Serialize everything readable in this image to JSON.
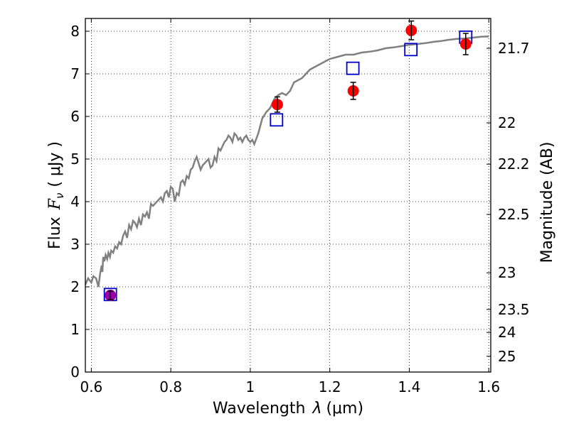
{
  "chart_data": {
    "type": "scatter",
    "xlabel": "Wavelength",
    "xlabel_symbol": "λ",
    "xlabel_unit": "(μm)",
    "ylabel": "Flux",
    "ylabel_symbol": "F",
    "ylabel_subscript": "ν",
    "ylabel_unit": "( μJy )",
    "y2label": "Magnitude (AB)",
    "xlim": [
      0.585,
      1.605
    ],
    "ylim": [
      0,
      8.3
    ],
    "grid": true,
    "grid_style": "dotted",
    "x_ticks": [
      0.6,
      0.8,
      1.0,
      1.2,
      1.4,
      1.6
    ],
    "x_tick_labels": [
      "0.6",
      "0.8",
      "1",
      "1.2",
      "1.4",
      "1.6"
    ],
    "y_ticks": [
      0,
      1,
      2,
      3,
      4,
      5,
      6,
      7,
      8
    ],
    "y_tick_labels": [
      "0",
      "1",
      "2",
      "3",
      "4",
      "5",
      "6",
      "7",
      "8"
    ],
    "y2_ticks": [
      {
        "label": "21.7",
        "flux": 7.6
      },
      {
        "label": "22",
        "flux": 5.85
      },
      {
        "label": "22.2",
        "flux": 4.88
      },
      {
        "label": "22.5",
        "flux": 3.7
      },
      {
        "label": "23",
        "flux": 2.33
      },
      {
        "label": "23.5",
        "flux": 1.47
      },
      {
        "label": "24",
        "flux": 0.93
      },
      {
        "label": "25",
        "flux": 0.37
      }
    ],
    "series": [
      {
        "name": "model-spectrum",
        "kind": "line",
        "color": "#808080",
        "x": [
          0.585,
          0.592,
          0.6,
          0.605,
          0.612,
          0.618,
          0.622,
          0.626,
          0.628,
          0.63,
          0.633,
          0.636,
          0.64,
          0.643,
          0.647,
          0.65,
          0.655,
          0.66,
          0.665,
          0.67,
          0.675,
          0.68,
          0.685,
          0.69,
          0.695,
          0.7,
          0.705,
          0.71,
          0.715,
          0.72,
          0.725,
          0.73,
          0.735,
          0.74,
          0.745,
          0.75,
          0.755,
          0.76,
          0.765,
          0.77,
          0.775,
          0.78,
          0.785,
          0.79,
          0.795,
          0.8,
          0.805,
          0.81,
          0.815,
          0.82,
          0.825,
          0.83,
          0.835,
          0.84,
          0.845,
          0.85,
          0.855,
          0.86,
          0.865,
          0.87,
          0.875,
          0.88,
          0.885,
          0.89,
          0.895,
          0.9,
          0.905,
          0.91,
          0.915,
          0.92,
          0.925,
          0.93,
          0.935,
          0.94,
          0.945,
          0.95,
          0.955,
          0.96,
          0.965,
          0.97,
          0.975,
          0.98,
          0.985,
          0.99,
          0.995,
          1.0,
          1.005,
          1.01,
          1.02,
          1.03,
          1.04,
          1.05,
          1.06,
          1.07,
          1.08,
          1.09,
          1.1,
          1.11,
          1.12,
          1.13,
          1.14,
          1.15,
          1.16,
          1.17,
          1.18,
          1.19,
          1.2,
          1.22,
          1.24,
          1.26,
          1.28,
          1.3,
          1.32,
          1.34,
          1.36,
          1.38,
          1.4,
          1.42,
          1.44,
          1.46,
          1.48,
          1.5,
          1.52,
          1.54,
          1.56,
          1.58,
          1.6
        ],
        "y": [
          2.05,
          2.2,
          2.1,
          2.25,
          2.2,
          2.0,
          2.3,
          2.5,
          2.35,
          2.7,
          2.6,
          2.75,
          2.65,
          2.8,
          2.7,
          2.85,
          2.8,
          2.95,
          2.9,
          3.05,
          3.0,
          3.2,
          3.3,
          3.15,
          3.45,
          3.35,
          3.55,
          3.5,
          3.4,
          3.6,
          3.45,
          3.7,
          3.65,
          3.75,
          3.6,
          3.95,
          3.9,
          3.95,
          4.0,
          4.05,
          4.1,
          4.0,
          4.2,
          4.25,
          4.1,
          4.35,
          4.3,
          4.0,
          4.2,
          4.15,
          4.45,
          4.5,
          4.4,
          4.6,
          4.55,
          4.75,
          4.8,
          4.95,
          5.05,
          4.9,
          4.75,
          4.85,
          4.9,
          4.95,
          5.0,
          4.8,
          4.85,
          5.05,
          4.95,
          5.25,
          5.2,
          5.3,
          5.4,
          5.45,
          5.55,
          5.5,
          5.4,
          5.6,
          5.55,
          5.45,
          5.5,
          5.4,
          5.5,
          5.55,
          5.45,
          5.4,
          5.45,
          5.35,
          5.6,
          5.95,
          6.1,
          6.2,
          6.4,
          6.5,
          6.55,
          6.5,
          6.6,
          6.8,
          6.85,
          6.9,
          7.0,
          7.1,
          7.15,
          7.2,
          7.25,
          7.3,
          7.35,
          7.4,
          7.45,
          7.45,
          7.5,
          7.52,
          7.55,
          7.6,
          7.62,
          7.65,
          7.68,
          7.7,
          7.72,
          7.75,
          7.77,
          7.8,
          7.82,
          7.83,
          7.85,
          7.87,
          7.88
        ]
      },
      {
        "name": "model-photometry",
        "kind": "open-square",
        "color": "#0000cc",
        "x": [
          0.648,
          1.066,
          1.258,
          1.404,
          1.542
        ],
        "y": [
          1.82,
          5.92,
          7.13,
          7.57,
          7.86
        ]
      },
      {
        "name": "observed-photometry",
        "kind": "filled-circle",
        "color": "#ff0000",
        "x": [
          1.068,
          1.259,
          1.405,
          1.542
        ],
        "y": [
          6.28,
          6.6,
          8.02,
          7.7
        ],
        "yerr": [
          0.18,
          0.2,
          0.22,
          0.25
        ]
      },
      {
        "name": "observed-photometry-optical",
        "kind": "filled-circle",
        "color": "#9900aa",
        "x": [
          0.648
        ],
        "y": [
          1.8
        ],
        "yerr": [
          0.1
        ]
      }
    ]
  }
}
